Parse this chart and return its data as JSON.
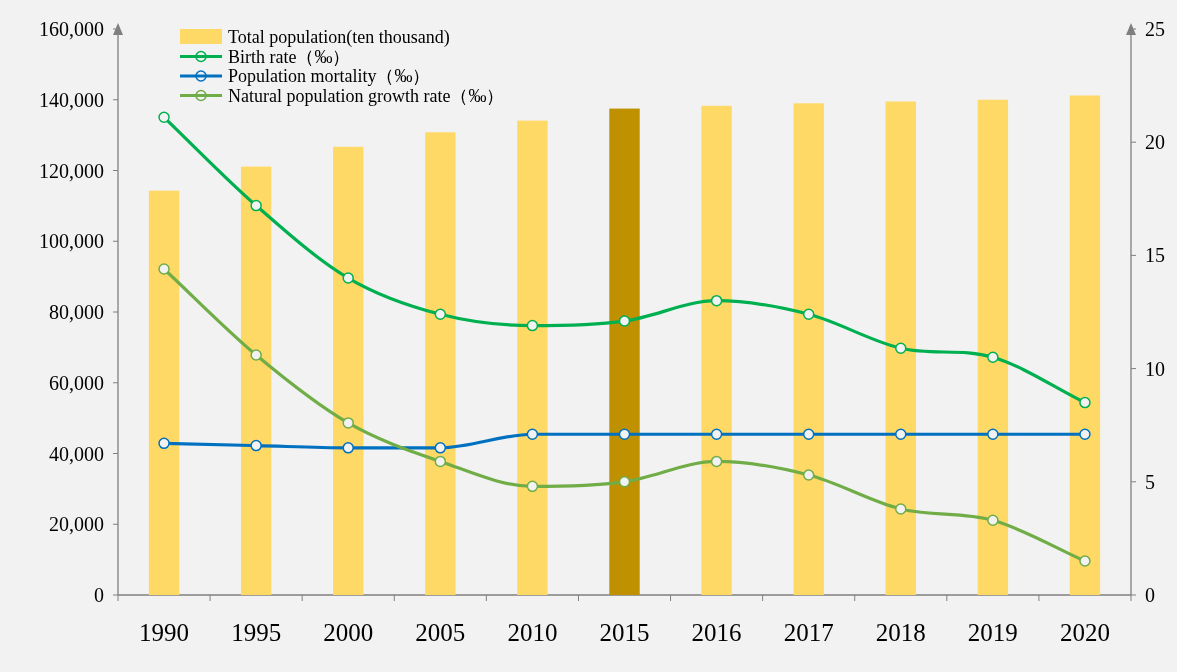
{
  "chart_data": {
    "type": "bar",
    "categories": [
      "1990",
      "1995",
      "2000",
      "2005",
      "2010",
      "2015",
      "2016",
      "2017",
      "2018",
      "2019",
      "2020"
    ],
    "series": [
      {
        "name": "Total population(ten thousand)",
        "color": "#ffd966",
        "colors": [
          "#ffd966",
          "#ffd966",
          "#ffd966",
          "#ffd966",
          "#ffd966",
          "#bf9000",
          "#ffd966",
          "#ffd966",
          "#ffd966",
          "#ffd966",
          "#ffd966"
        ],
        "values": [
          114300,
          121100,
          126700,
          130800,
          134100,
          137500,
          138300,
          139000,
          139500,
          140000,
          141200
        ]
      },
      {
        "name": "Birth rate（‰）",
        "type": "line",
        "axis": "y2",
        "color": "#00b050",
        "values": [
          21.1,
          17.2,
          14.0,
          12.4,
          11.9,
          12.1,
          13.0,
          12.4,
          10.9,
          10.5,
          8.5
        ]
      },
      {
        "name": "Population mortality（‰）",
        "type": "line",
        "axis": "y2",
        "color": "#0070c0",
        "values": [
          6.7,
          6.6,
          6.5,
          6.5,
          7.1,
          7.1,
          7.1,
          7.1,
          7.1,
          7.1,
          7.1
        ]
      },
      {
        "name": "Natural population growth rate（‰）",
        "type": "line",
        "axis": "y2",
        "color": "#70ad47",
        "values": [
          14.4,
          10.6,
          7.6,
          5.9,
          4.8,
          5.0,
          5.9,
          5.3,
          3.8,
          3.3,
          1.5
        ]
      }
    ],
    "ylim": [
      0,
      160000
    ],
    "yticks": [
      0,
      {
        "value": 20000,
        "label": "20,000"
      },
      {
        "value": 40000,
        "label": "40,000"
      },
      {
        "value": 60000,
        "label": "60,000"
      },
      {
        "value": 80000,
        "label": "80,000"
      },
      {
        "value": 100000,
        "label": "100,000"
      },
      {
        "value": 120000,
        "label": "120,000"
      },
      {
        "value": 140000,
        "label": "140,000"
      },
      {
        "value": 160000,
        "label": "160,000"
      }
    ],
    "y2lim": [
      0,
      25
    ],
    "y2ticks": [
      0,
      5,
      10,
      15,
      20,
      25
    ],
    "legend": "top left",
    "marker": "circle",
    "line_style": "solid",
    "grid": false
  }
}
